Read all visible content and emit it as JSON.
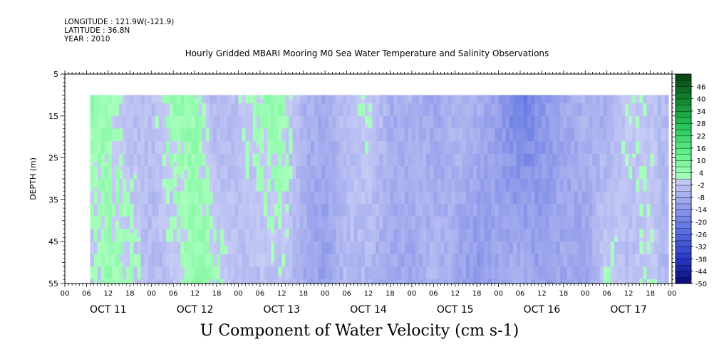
{
  "header": {
    "longitude": "LONGITUDE : 121.9W(-121.9)",
    "latitude": "LATITUDE : 36.8N",
    "year": "YEAR : 2010"
  },
  "chart_data": {
    "type": "heatmap",
    "title": "Hourly Gridded MBARI Mooring M0 Sea Water Temperature and Salinity Observations",
    "xlabel": "U Component of Water Velocity (cm s-1)",
    "ylabel": "DEPTH (m)",
    "ylim": [
      55,
      5
    ],
    "y_ticks": [
      5,
      15,
      25,
      35,
      45,
      55
    ],
    "data_depth_range": [
      10,
      55
    ],
    "x_hour_ticks": [
      "00",
      "06",
      "12",
      "18",
      "00",
      "06",
      "12",
      "18",
      "00",
      "06",
      "12",
      "18",
      "00",
      "06",
      "12",
      "18",
      "00",
      "06",
      "12",
      "18",
      "00",
      "06",
      "12",
      "18",
      "00",
      "06",
      "12",
      "18",
      "00"
    ],
    "x_day_labels": [
      "OCT 11",
      "OCT 12",
      "OCT 13",
      "OCT 14",
      "OCT 15",
      "OCT 16",
      "OCT 17"
    ],
    "data_start_hour_of_oct11": 7,
    "data_end_hour_of_oct17": 23,
    "colorbar": {
      "labels": [
        "46",
        "40",
        "34",
        "28",
        "22",
        "16",
        "10",
        "4",
        "-2",
        "-8",
        "-14",
        "-20",
        "-26",
        "-32",
        "-38",
        "-44",
        "-50"
      ],
      "range": [
        -50,
        52
      ],
      "step": 3
    },
    "velocity_by_time_block": {
      "description_hours": [
        7,
        12,
        18,
        24,
        30,
        36,
        42,
        48,
        54,
        60,
        66,
        72,
        78,
        84,
        90,
        96,
        102,
        108,
        114,
        120,
        126,
        132,
        138,
        144,
        150,
        156,
        162,
        167
      ],
      "surface_values": [
        6,
        3,
        -4,
        -3,
        5,
        4,
        -6,
        -2,
        4,
        5,
        -6,
        -9,
        -3,
        2,
        -8,
        -6,
        -10,
        -5,
        -7,
        -12,
        -22,
        -14,
        -10,
        -6,
        -8,
        1,
        -2,
        -5
      ],
      "bottom_values": [
        -2,
        4,
        3,
        -5,
        -3,
        6,
        3,
        -4,
        -3,
        -1,
        -8,
        -12,
        -4,
        -6,
        -8,
        -10,
        -5,
        -9,
        -14,
        -10,
        -6,
        -12,
        -9,
        -12,
        2,
        -4,
        1,
        -6
      ]
    }
  }
}
